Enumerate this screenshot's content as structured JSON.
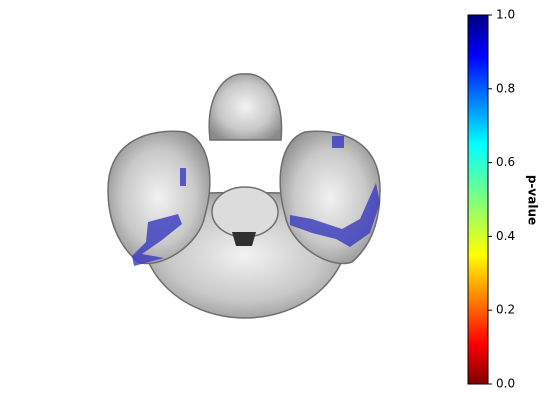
{
  "chart_data": {
    "type": "image",
    "colorbar": {
      "label": "p-value",
      "colormap": "jet_r",
      "lim": [
        0,
        1
      ],
      "ticks": [
        {
          "value": 0,
          "label": "0.0"
        },
        {
          "value": 0.2,
          "label": "0.2"
        },
        {
          "value": 0.4,
          "label": "0.4"
        },
        {
          "value": 0.6,
          "label": "0.6"
        },
        {
          "value": 0.8,
          "label": "0.8"
        },
        {
          "value": 1,
          "label": "1.0"
        }
      ]
    }
  }
}
